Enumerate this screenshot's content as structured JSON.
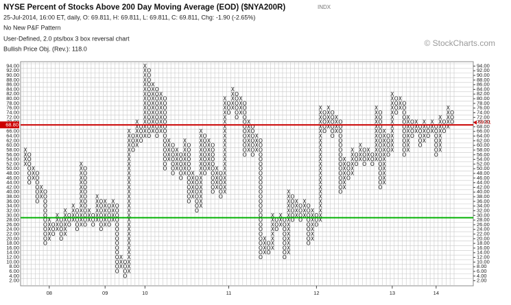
{
  "chart_data": {
    "type": "pnf",
    "title": "NYSE Percent of Stocks Above 200 Day Moving Average (EOD) ($NYA200R)",
    "exchange": "INDX",
    "info": "25-Jul-2014, 16:00 ET, daily, O: 69.811, H: 69.811, L: 69.811, C: 69.811, Chg: -1.90 (-2.65%)",
    "pattern": "No New P&F Pattern",
    "settings": "User-Defined, 2.0 pts/box 3 box reversal chart",
    "objective": "Bullish Price Obj. (Rev.): 118.0",
    "watermark": "© StockCharts.com",
    "box_size": 2,
    "ylim": [
      1,
      95
    ],
    "xlim": [
      -0.5,
      107.5
    ],
    "yticks": [
      {
        "value": 2,
        "label": "2.00"
      },
      {
        "value": 4,
        "label": "4.00"
      },
      {
        "value": 6,
        "label": "6.00"
      },
      {
        "value": 8,
        "label": "8.00"
      },
      {
        "value": 10,
        "label": "10.00"
      },
      {
        "value": 12,
        "label": "12.00"
      },
      {
        "value": 14,
        "label": "14.00"
      },
      {
        "value": 16,
        "label": "16.00"
      },
      {
        "value": 18,
        "label": "18.00"
      },
      {
        "value": 20,
        "label": "20.00"
      },
      {
        "value": 22,
        "label": "22.00"
      },
      {
        "value": 24,
        "label": "24.00"
      },
      {
        "value": 26,
        "label": "26.00"
      },
      {
        "value": 28,
        "label": "28.00"
      },
      {
        "value": 30,
        "label": "30.00"
      },
      {
        "value": 32,
        "label": "32.00"
      },
      {
        "value": 34,
        "label": "34.00"
      },
      {
        "value": 36,
        "label": "36.00"
      },
      {
        "value": 38,
        "label": "38.00"
      },
      {
        "value": 40,
        "label": "40.00"
      },
      {
        "value": 42,
        "label": "42.00"
      },
      {
        "value": 44,
        "label": "44.00"
      },
      {
        "value": 46,
        "label": "46.00"
      },
      {
        "value": 48,
        "label": "48.00"
      },
      {
        "value": 50,
        "label": "50.00"
      },
      {
        "value": 52,
        "label": "52.00"
      },
      {
        "value": 54,
        "label": "54.00"
      },
      {
        "value": 56,
        "label": "56.00"
      },
      {
        "value": 58,
        "label": "58.00"
      },
      {
        "value": 60,
        "label": "60.00"
      },
      {
        "value": 62,
        "label": "62.00"
      },
      {
        "value": 64,
        "label": "64.00"
      },
      {
        "value": 66,
        "label": "66.00"
      },
      {
        "value": 68,
        "label": "68.00"
      },
      {
        "value": 70,
        "label": "70.00"
      },
      {
        "value": 72,
        "label": "72.00"
      },
      {
        "value": 74,
        "label": "74.00"
      },
      {
        "value": 76,
        "label": "76.00"
      },
      {
        "value": 78,
        "label": "78.00"
      },
      {
        "value": 80,
        "label": "80.00"
      },
      {
        "value": 82,
        "label": "82.00"
      },
      {
        "value": 84,
        "label": "84.00"
      },
      {
        "value": 86,
        "label": "86.00"
      },
      {
        "value": 88,
        "label": "88.00"
      },
      {
        "value": 90,
        "label": "90.00"
      },
      {
        "value": 92,
        "label": "92.00"
      },
      {
        "value": 94,
        "label": "94.00"
      }
    ],
    "xticks": [
      {
        "value": 6,
        "label": "08"
      },
      {
        "value": 20,
        "label": "09"
      },
      {
        "value": 30,
        "label": "10"
      },
      {
        "value": 51,
        "label": "11"
      },
      {
        "value": 73,
        "label": "12"
      },
      {
        "value": 92,
        "label": "13"
      },
      {
        "value": 103,
        "label": "14"
      }
    ],
    "lines": [
      {
        "value": 68.8,
        "label": "68.80",
        "color": "#cc0000"
      },
      {
        "value": 29,
        "color": "#00b000"
      }
    ],
    "last": {
      "value": 69.81,
      "label": "69.81",
      "color": "#cc0000"
    },
    "columns": [
      [
        "X",
        52,
        58
      ],
      [
        "O",
        44,
        56
      ],
      [
        "X",
        46,
        50
      ],
      [
        "O",
        36,
        48
      ],
      [
        "X",
        38,
        42
      ],
      [
        "O",
        18,
        40
      ],
      [
        "X",
        20,
        28
      ],
      [
        "O",
        22,
        26
      ],
      [
        "X",
        24,
        30
      ],
      [
        "O",
        20,
        28
      ],
      [
        "X",
        22,
        32
      ],
      [
        "O",
        26,
        30
      ],
      [
        "X",
        28,
        34
      ],
      [
        "O",
        24,
        32
      ],
      [
        "X",
        26,
        52
      ],
      [
        "O",
        26,
        50
      ],
      [
        "X",
        28,
        32
      ],
      [
        "O",
        26,
        30
      ],
      [
        "X",
        28,
        38
      ],
      [
        "O",
        24,
        36
      ],
      [
        "X",
        26,
        36
      ],
      [
        "O",
        26,
        34
      ],
      [
        "X",
        28,
        36
      ],
      [
        "O",
        6,
        34
      ],
      [
        "X",
        8,
        12
      ],
      [
        "O",
        4,
        10
      ],
      [
        "X",
        6,
        66
      ],
      [
        "O",
        58,
        64
      ],
      [
        "X",
        60,
        70
      ],
      [
        "O",
        62,
        68
      ],
      [
        "X",
        64,
        94
      ],
      [
        "O",
        64,
        92
      ],
      [
        "X",
        66,
        86
      ],
      [
        "O",
        64,
        84
      ],
      [
        "X",
        66,
        82
      ],
      [
        "O",
        50,
        80
      ],
      [
        "X",
        54,
        62
      ],
      [
        "O",
        48,
        60
      ],
      [
        "X",
        50,
        58
      ],
      [
        "O",
        46,
        56
      ],
      [
        "X",
        48,
        62
      ],
      [
        "O",
        36,
        60
      ],
      [
        "X",
        38,
        48
      ],
      [
        "O",
        32,
        46
      ],
      [
        "X",
        34,
        66
      ],
      [
        "O",
        48,
        64
      ],
      [
        "X",
        50,
        62
      ],
      [
        "O",
        40,
        60
      ],
      [
        "X",
        42,
        50
      ],
      [
        "O",
        38,
        48
      ],
      [
        "X",
        40,
        80
      ],
      [
        "O",
        74,
        78
      ],
      [
        "X",
        76,
        84
      ],
      [
        "O",
        72,
        82
      ],
      [
        "X",
        74,
        80
      ],
      [
        "O",
        56,
        78
      ],
      [
        "X",
        58,
        70
      ],
      [
        "O",
        56,
        68
      ],
      [
        "X",
        58,
        64
      ],
      [
        "O",
        12,
        62
      ],
      [
        "X",
        14,
        20
      ],
      [
        "O",
        14,
        18
      ],
      [
        "X",
        16,
        30
      ],
      [
        "O",
        24,
        28
      ],
      [
        "X",
        26,
        30
      ],
      [
        "O",
        12,
        28
      ],
      [
        "X",
        14,
        40
      ],
      [
        "O",
        28,
        38
      ],
      [
        "X",
        30,
        36
      ],
      [
        "O",
        28,
        34
      ],
      [
        "X",
        30,
        36
      ],
      [
        "O",
        18,
        34
      ],
      [
        "X",
        20,
        32
      ],
      [
        "O",
        26,
        30
      ],
      [
        "X",
        28,
        76
      ],
      [
        "O",
        66,
        74
      ],
      [
        "X",
        68,
        76
      ],
      [
        "O",
        64,
        74
      ],
      [
        "X",
        66,
        72
      ],
      [
        "O",
        40,
        70
      ],
      [
        "X",
        42,
        54
      ],
      [
        "O",
        46,
        52
      ],
      [
        "X",
        48,
        58
      ],
      [
        "O",
        52,
        56
      ],
      [
        "X",
        54,
        60
      ],
      [
        "O",
        52,
        58
      ],
      [
        "X",
        54,
        58
      ],
      [
        "O",
        52,
        56
      ],
      [
        "X",
        54,
        76
      ],
      [
        "O",
        42,
        74
      ],
      [
        "X",
        44,
        66
      ],
      [
        "O",
        56,
        64
      ],
      [
        "X",
        58,
        82
      ],
      [
        "O",
        74,
        80
      ],
      [
        "X",
        76,
        80
      ],
      [
        "O",
        56,
        78
      ],
      [
        "X",
        58,
        72
      ],
      [
        "O",
        64,
        70
      ],
      [
        "X",
        66,
        70
      ],
      [
        "O",
        60,
        68
      ],
      [
        "X",
        62,
        70
      ],
      [
        "O",
        64,
        68
      ],
      [
        "X",
        66,
        70
      ],
      [
        "O",
        56,
        68
      ],
      [
        "X",
        58,
        72
      ],
      [
        "O",
        66,
        70
      ],
      [
        "X",
        68,
        76
      ],
      [
        "O",
        70,
        74
      ]
    ]
  }
}
